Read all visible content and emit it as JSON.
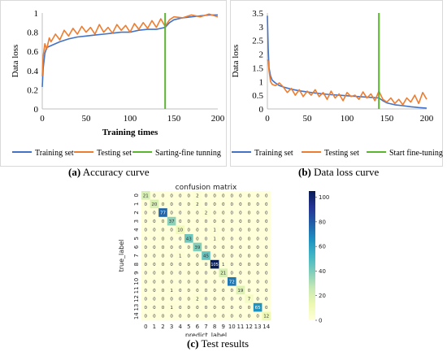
{
  "chart_data": [
    {
      "type": "line",
      "caption_label": "(a)",
      "caption_text": "Accuracy curve",
      "xlabel": "Training times",
      "ylabel": "Data loss",
      "xlim": [
        0,
        200
      ],
      "ylim": [
        0,
        1
      ],
      "xticks": [
        0,
        50,
        100,
        150,
        200
      ],
      "yticks": [
        0,
        0.2,
        0.4,
        0.6,
        0.8,
        1
      ],
      "ytick_labels": [
        "0",
        "0.2",
        "0.4",
        "0.6",
        "0.8",
        "1"
      ],
      "legend_position": "bottom",
      "vline": {
        "x": 140,
        "name": "Sarting-fine tunning",
        "color": "#5cb531"
      },
      "series": [
        {
          "name": "Training set",
          "color": "#4472c4",
          "x": [
            0,
            1,
            3,
            5,
            10,
            20,
            30,
            40,
            50,
            60,
            70,
            80,
            90,
            100,
            110,
            120,
            130,
            140,
            145,
            150,
            160,
            170,
            180,
            190,
            200
          ],
          "y": [
            0.23,
            0.42,
            0.58,
            0.64,
            0.66,
            0.7,
            0.73,
            0.75,
            0.76,
            0.77,
            0.78,
            0.79,
            0.8,
            0.8,
            0.82,
            0.83,
            0.83,
            0.85,
            0.9,
            0.93,
            0.95,
            0.96,
            0.97,
            0.98,
            0.98
          ]
        },
        {
          "name": "Testing set",
          "color": "#ed7d31",
          "x": [
            0,
            1,
            3,
            5,
            8,
            10,
            15,
            20,
            25,
            30,
            35,
            40,
            45,
            50,
            55,
            60,
            65,
            70,
            75,
            80,
            85,
            90,
            95,
            100,
            105,
            110,
            115,
            120,
            125,
            130,
            135,
            140,
            145,
            150,
            160,
            170,
            180,
            190,
            200
          ],
          "y": [
            0.34,
            0.55,
            0.68,
            0.62,
            0.74,
            0.7,
            0.78,
            0.72,
            0.82,
            0.76,
            0.84,
            0.78,
            0.86,
            0.8,
            0.85,
            0.78,
            0.88,
            0.8,
            0.85,
            0.79,
            0.88,
            0.82,
            0.87,
            0.8,
            0.89,
            0.83,
            0.9,
            0.84,
            0.92,
            0.85,
            0.94,
            0.86,
            0.93,
            0.96,
            0.95,
            0.98,
            0.96,
            0.99,
            0.96
          ]
        }
      ]
    },
    {
      "type": "line",
      "caption_label": "(b)",
      "caption_text": "Data loss curve",
      "xlabel": "",
      "ylabel": "Data loss",
      "xlim": [
        0,
        200
      ],
      "ylim": [
        0,
        3.5
      ],
      "xticks": [
        0,
        50,
        100,
        150,
        200
      ],
      "yticks": [
        0,
        0.5,
        1,
        1.5,
        2,
        2.5,
        3,
        3.5
      ],
      "ytick_labels": [
        "0",
        "0.5",
        "1",
        "1.5",
        "2",
        "2.5",
        "3",
        "3.5"
      ],
      "legend_position": "bottom",
      "vline": {
        "x": 140,
        "name": "Start fine-tuning",
        "color": "#5cb531"
      },
      "series": [
        {
          "name": "Training set",
          "color": "#4472c4",
          "x": [
            0,
            1,
            2,
            4,
            6,
            10,
            15,
            20,
            30,
            40,
            50,
            60,
            70,
            80,
            90,
            100,
            110,
            120,
            130,
            140,
            145,
            150,
            160,
            170,
            180,
            190,
            200
          ],
          "y": [
            3.4,
            2.2,
            1.5,
            1.2,
            1.05,
            0.95,
            0.85,
            0.8,
            0.72,
            0.66,
            0.62,
            0.58,
            0.55,
            0.52,
            0.5,
            0.48,
            0.46,
            0.44,
            0.42,
            0.4,
            0.3,
            0.22,
            0.15,
            0.12,
            0.08,
            0.05,
            0.03
          ]
        },
        {
          "name": "Testing set",
          "color": "#ed7d31",
          "x": [
            0,
            1,
            2,
            4,
            6,
            10,
            15,
            20,
            25,
            30,
            35,
            40,
            45,
            50,
            55,
            60,
            65,
            70,
            75,
            80,
            85,
            90,
            95,
            100,
            105,
            110,
            115,
            120,
            125,
            130,
            135,
            140,
            145,
            150,
            155,
            160,
            165,
            170,
            175,
            180,
            185,
            190,
            195,
            200
          ],
          "y": [
            1.8,
            1.75,
            1.4,
            1.0,
            0.9,
            0.85,
            0.95,
            0.8,
            0.6,
            0.75,
            0.5,
            0.7,
            0.45,
            0.65,
            0.5,
            0.7,
            0.45,
            0.6,
            0.35,
            0.65,
            0.4,
            0.55,
            0.3,
            0.6,
            0.45,
            0.5,
            0.35,
            0.62,
            0.4,
            0.55,
            0.3,
            0.65,
            0.35,
            0.25,
            0.4,
            0.2,
            0.35,
            0.15,
            0.4,
            0.25,
            0.5,
            0.2,
            0.6,
            0.35
          ]
        }
      ]
    },
    {
      "type": "heatmap",
      "caption_label": "(c)",
      "caption_text": "Test results",
      "title": "confusion matrix",
      "xlabel": "predict_label",
      "ylabel": "true_label",
      "labels": [
        "0",
        "1",
        "2",
        "3",
        "4",
        "5",
        "6",
        "7",
        "8",
        "9",
        "10",
        "11",
        "12",
        "13",
        "14"
      ],
      "colorbar": {
        "min": 0,
        "max": 105,
        "ticks": [
          0,
          20,
          40,
          60,
          80,
          100
        ]
      },
      "matrix": [
        [
          21,
          0,
          0,
          0,
          0,
          0,
          2,
          0,
          0,
          0,
          0,
          0,
          0,
          0,
          0
        ],
        [
          0,
          20,
          0,
          0,
          0,
          0,
          2,
          0,
          0,
          0,
          0,
          0,
          0,
          0,
          0
        ],
        [
          0,
          0,
          77,
          0,
          0,
          0,
          0,
          2,
          0,
          0,
          0,
          0,
          0,
          0,
          0
        ],
        [
          0,
          0,
          0,
          37,
          0,
          0,
          0,
          0,
          0,
          0,
          0,
          0,
          0,
          0,
          0
        ],
        [
          0,
          0,
          0,
          0,
          10,
          0,
          0,
          0,
          1,
          0,
          0,
          0,
          0,
          0,
          0
        ],
        [
          0,
          0,
          0,
          0,
          0,
          43,
          0,
          0,
          1,
          0,
          0,
          0,
          0,
          0,
          0
        ],
        [
          0,
          0,
          0,
          0,
          0,
          0,
          39,
          0,
          0,
          0,
          0,
          0,
          0,
          0,
          0
        ],
        [
          0,
          0,
          0,
          0,
          1,
          0,
          0,
          45,
          0,
          0,
          0,
          0,
          0,
          0,
          0
        ],
        [
          0,
          0,
          0,
          0,
          0,
          0,
          0,
          0,
          105,
          1,
          0,
          0,
          0,
          0,
          0
        ],
        [
          0,
          0,
          0,
          0,
          0,
          0,
          0,
          0,
          0,
          21,
          0,
          0,
          0,
          0,
          0
        ],
        [
          0,
          0,
          0,
          0,
          0,
          0,
          0,
          0,
          0,
          0,
          72,
          0,
          0,
          0,
          0
        ],
        [
          0,
          0,
          0,
          1,
          0,
          0,
          0,
          0,
          0,
          0,
          0,
          19,
          0,
          0,
          0
        ],
        [
          0,
          0,
          0,
          0,
          0,
          0,
          2,
          0,
          0,
          0,
          0,
          0,
          7,
          0,
          0
        ],
        [
          0,
          0,
          0,
          1,
          0,
          0,
          0,
          0,
          0,
          0,
          0,
          0,
          0,
          65,
          0
        ],
        [
          0,
          0,
          0,
          0,
          0,
          0,
          0,
          0,
          0,
          0,
          0,
          0,
          0,
          0,
          12
        ]
      ]
    }
  ]
}
